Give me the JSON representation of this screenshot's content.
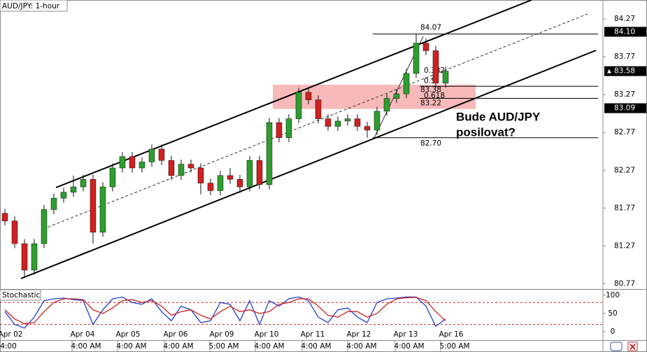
{
  "chart_data": {
    "type": "candlestick",
    "title": "AUD/JPY: 1-hour",
    "annotation": [
      "Bude AUD/JPY",
      "posilovat?"
    ],
    "ylim": [
      80.7,
      84.52
    ],
    "yticks": [
      84.27,
      83.77,
      83.27,
      82.77,
      82.27,
      81.77,
      81.27,
      80.77
    ],
    "price_markers": [
      {
        "value": 84.1,
        "label": "84.10"
      },
      83.58,
      83.09
    ],
    "level_labels": [
      {
        "value": 84.07,
        "label": "84.07"
      },
      83.38,
      83.22,
      {
        "value": 82.7,
        "label": "82.70"
      }
    ],
    "fib_ratios": [
      0.382,
      0.5,
      0.618
    ],
    "zone": [
      83.08,
      83.4
    ],
    "date_labels": [
      "Apr 02",
      "Apr 04",
      "Apr 05",
      "Apr 06",
      "Apr 09",
      "Apr 10",
      "Apr 11",
      "Apr 12",
      "Apr 13",
      "Apr 16"
    ],
    "time_labels": [
      "4:00",
      "4:00 AM",
      "4:00 AM",
      "4:00 AM",
      "5:00 AM",
      "4:00 AM",
      "4:00 AM",
      "4:00 AM",
      "4:00 AM",
      "5:00 AM"
    ],
    "up_color": "#2e9e2e",
    "down_color": "#d02020",
    "open": [
      81.7,
      81.6,
      81.3,
      80.95,
      81.3,
      81.75,
      81.9,
      81.98,
      82.05,
      82.15,
      81.45,
      82.05,
      82.3,
      82.45,
      82.3,
      82.38,
      82.55,
      82.4,
      82.2,
      82.35,
      82.3,
      82.1,
      82.0,
      82.2,
      82.15,
      82.05,
      82.4,
      82.08,
      82.9,
      82.7,
      82.95,
      83.3,
      83.2,
      82.95,
      82.85,
      82.92,
      82.95,
      82.85,
      82.8,
      83.05,
      83.22,
      83.28,
      83.55,
      83.95,
      83.85,
      83.42
    ],
    "high": [
      81.76,
      81.66,
      81.36,
      81.36,
      81.81,
      81.96,
      82.04,
      82.2,
      82.21,
      82.21,
      82.11,
      82.36,
      82.51,
      82.51,
      82.44,
      82.61,
      82.61,
      82.46,
      82.41,
      82.41,
      82.36,
      82.16,
      82.26,
      82.3,
      82.21,
      82.46,
      82.46,
      82.96,
      82.96,
      83.01,
      83.36,
      83.36,
      83.26,
      83.01,
      82.98,
      83.01,
      83.01,
      82.91,
      83.11,
      83.28,
      83.34,
      83.61,
      84.07,
      84.01,
      83.91,
      83.64
    ],
    "low": [
      81.54,
      81.24,
      80.85,
      80.89,
      81.24,
      81.69,
      81.84,
      81.92,
      81.99,
      81.3,
      81.39,
      81.99,
      82.24,
      82.24,
      82.24,
      82.32,
      82.34,
      82.14,
      82.14,
      82.24,
      81.95,
      81.94,
      81.94,
      82.09,
      81.97,
      81.99,
      82.02,
      82.02,
      82.64,
      82.64,
      82.89,
      83.14,
      82.89,
      82.79,
      82.79,
      82.86,
      82.79,
      82.7,
      82.74,
      82.99,
      83.16,
      83.22,
      83.49,
      83.79,
      83.36,
      83.36
    ],
    "close": [
      81.6,
      81.3,
      80.95,
      81.3,
      81.75,
      81.9,
      81.98,
      82.05,
      82.15,
      81.45,
      82.05,
      82.3,
      82.45,
      82.3,
      82.38,
      82.55,
      82.4,
      82.2,
      82.35,
      82.3,
      82.1,
      82.0,
      82.2,
      82.15,
      82.05,
      82.4,
      82.08,
      82.9,
      82.7,
      82.95,
      83.3,
      83.2,
      82.95,
      82.85,
      82.92,
      82.95,
      82.85,
      82.8,
      83.05,
      83.22,
      83.28,
      83.55,
      83.95,
      83.85,
      83.42,
      83.58
    ],
    "stochastic": {
      "title": "Stochastic",
      "ylim": [
        -19,
        113
      ],
      "yticks": [
        100,
        50,
        0
      ],
      "levels": [
        80,
        20
      ],
      "series": [
        {
          "color": "#2040d0",
          "values": [
            55,
            20,
            10,
            40,
            85,
            90,
            92,
            88,
            85,
            20,
            60,
            90,
            95,
            80,
            75,
            90,
            55,
            30,
            70,
            60,
            25,
            30,
            80,
            75,
            30,
            85,
            20,
            85,
            70,
            90,
            95,
            85,
            40,
            25,
            60,
            65,
            40,
            25,
            80,
            90,
            92,
            95,
            95,
            70,
            15,
            35
          ]
        },
        {
          "color": "#d02020",
          "values": [
            60,
            35,
            22,
            25,
            55,
            80,
            90,
            90,
            88,
            60,
            50,
            65,
            85,
            88,
            80,
            85,
            70,
            45,
            55,
            60,
            45,
            35,
            55,
            70,
            55,
            60,
            50,
            55,
            75,
            80,
            90,
            90,
            70,
            45,
            40,
            55,
            55,
            40,
            50,
            75,
            90,
            93,
            94,
            85,
            55,
            30
          ]
        }
      ]
    }
  }
}
